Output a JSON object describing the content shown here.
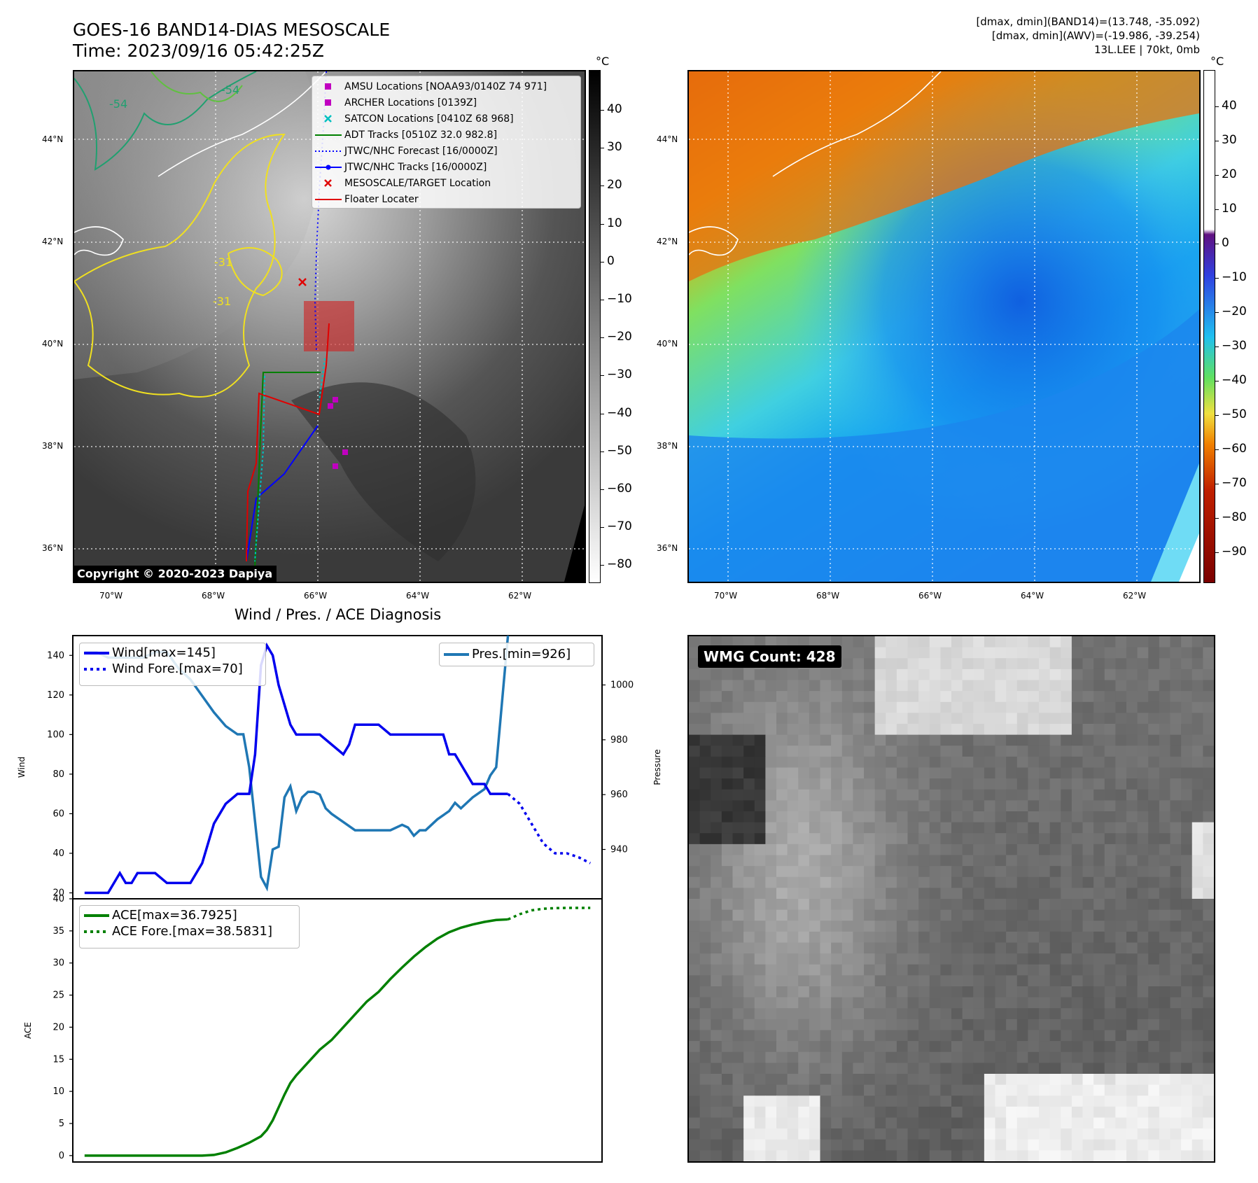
{
  "header": {
    "title_line1": "GOES-16 BAND14-DIAS MESOSCALE",
    "title_line2": "Time: 2023/09/16 05:42:25Z",
    "info_line1": "[dmax, dmin](BAND14)=(13.748, -35.092)",
    "info_line2": "[dmax, dmin](AWV)=(-19.986, -39.254)",
    "info_line3": "13L.LEE | 70kt, 0mb"
  },
  "maps": {
    "lat_labels": [
      "44°N",
      "42°N",
      "40°N",
      "38°N",
      "36°N"
    ],
    "lon_labels": [
      "70°W",
      "68°W",
      "66°W",
      "64°W",
      "62°W"
    ],
    "copyright": "Copyright © 2020-2023 Dapiya",
    "contour_labels": [
      "-54",
      "-54",
      "-31",
      "-31"
    ]
  },
  "colorbar_left": {
    "unit": "°C",
    "ticks": [
      "40",
      "30",
      "20",
      "10",
      "0",
      "−10",
      "−20",
      "−30",
      "−40",
      "−50",
      "−60",
      "−70",
      "−80"
    ]
  },
  "colorbar_right": {
    "unit": "°C",
    "ticks": [
      "40",
      "30",
      "20",
      "10",
      "0",
      "−10",
      "−20",
      "−30",
      "−40",
      "−50",
      "−60",
      "−70",
      "−80",
      "−90"
    ]
  },
  "map_legend": {
    "items": [
      {
        "label": "AMSU Locations [NOAA93/0140Z 74 971]",
        "color": "#c000c0",
        "symbol": "square"
      },
      {
        "label": "ARCHER Locations [0139Z]",
        "color": "#c000c0",
        "symbol": "square"
      },
      {
        "label": "SATCON Locations [0410Z 68 968]",
        "color": "#00c0c0",
        "symbol": "x"
      },
      {
        "label": "ADT Tracks [0510Z 32.0 982.8]",
        "color": "#008000",
        "symbol": "line"
      },
      {
        "label": "JTWC/NHC Forecast [16/0000Z]",
        "color": "#0000ff",
        "symbol": "dotted"
      },
      {
        "label": "JTWC/NHC Tracks [16/0000Z]",
        "color": "#0000ff",
        "symbol": "line-dot"
      },
      {
        "label": "MESOSCALE/TARGET Location",
        "color": "#e00000",
        "symbol": "x"
      },
      {
        "label": "Floater Locater",
        "color": "#e00000",
        "symbol": "line"
      }
    ]
  },
  "diagnosis": {
    "title": "Wind / Pres. / ACE Diagnosis",
    "wind_ylabel": "Wind",
    "pres_ylabel": "Pressure",
    "ace_ylabel": "ACE",
    "wind_legend": [
      "Wind[max=145]",
      "Wind Fore.[max=70]"
    ],
    "pres_legend": [
      "Pres.[min=926]"
    ],
    "ace_legend": [
      "ACE[max=36.7925]",
      "ACE Fore.[max=38.5831]"
    ]
  },
  "wmg": {
    "label": "WMG Count: 428"
  },
  "chart_data": [
    {
      "type": "line",
      "title": "Wind / Pres. / ACE Diagnosis",
      "ylabel": "Wind",
      "ylim": [
        17,
        150
      ],
      "yticks": [
        20,
        40,
        60,
        80,
        100,
        120,
        140
      ],
      "colors": {
        "wind": "#0000ee",
        "pres": "#1f77b4"
      },
      "series": [
        {
          "name": "Wind[max=145]",
          "x": [
            0,
            2,
            4,
            6,
            7,
            8,
            9,
            10,
            12,
            14,
            16,
            18,
            20,
            22,
            24,
            26,
            28,
            29,
            30,
            31,
            32,
            33,
            35,
            36,
            37,
            38,
            40,
            42,
            44,
            45,
            46,
            47,
            48,
            50,
            52,
            54,
            56,
            58,
            60,
            61,
            62,
            63,
            64,
            66,
            68,
            69,
            70,
            72
          ],
          "values": [
            20,
            20,
            20,
            30,
            25,
            25,
            30,
            30,
            30,
            25,
            25,
            25,
            35,
            55,
            65,
            70,
            70,
            90,
            135,
            145,
            140,
            125,
            105,
            100,
            100,
            100,
            100,
            95,
            90,
            95,
            105,
            105,
            105,
            105,
            100,
            100,
            100,
            100,
            100,
            100,
            90,
            90,
            85,
            75,
            75,
            70,
            70,
            70
          ]
        },
        {
          "name": "Wind Fore.[max=70]",
          "x": [
            72,
            74,
            76,
            78,
            80,
            82,
            84,
            86
          ],
          "values": [
            70,
            65,
            55,
            45,
            40,
            40,
            38,
            35
          ]
        },
        {
          "name": "Pres.[min=926]",
          "axis": "right",
          "ylim": [
            922,
            1018
          ],
          "yticks": [
            940,
            960,
            980,
            1000
          ],
          "x": [
            0,
            2,
            4,
            6,
            8,
            10,
            12,
            14,
            16,
            18,
            20,
            22,
            24,
            26,
            27,
            28,
            29,
            30,
            31,
            32,
            33,
            34,
            35,
            36,
            37,
            38,
            39,
            40,
            41,
            42,
            44,
            46,
            48,
            50,
            52,
            54,
            55,
            56,
            57,
            58,
            60,
            62,
            63,
            64,
            66,
            68,
            69,
            70,
            72
          ],
          "values": [
            1012,
            1012,
            1010,
            1010,
            1010,
            1010,
            1012,
            1012,
            1006,
            1002,
            996,
            990,
            985,
            982,
            982,
            970,
            950,
            930,
            926,
            940,
            941,
            959,
            963,
            954,
            959,
            961,
            961,
            960,
            955,
            953,
            950,
            947,
            947,
            947,
            947,
            949,
            948,
            945,
            947,
            947,
            951,
            954,
            957,
            955,
            959,
            962,
            967,
            970,
            1018
          ]
        }
      ]
    },
    {
      "type": "line",
      "ylabel": "ACE",
      "ylim": [
        -1,
        40
      ],
      "yticks": [
        0,
        5,
        10,
        15,
        20,
        25,
        30,
        35,
        40
      ],
      "colors": {
        "ace": "#008000"
      },
      "series": [
        {
          "name": "ACE[max=36.7925]",
          "x": [
            0,
            10,
            20,
            22,
            24,
            26,
            28,
            30,
            31,
            32,
            33,
            34,
            35,
            36,
            38,
            40,
            42,
            44,
            46,
            48,
            50,
            52,
            54,
            56,
            58,
            60,
            62,
            64,
            66,
            68,
            70,
            72
          ],
          "values": [
            0,
            0,
            0,
            0.1,
            0.5,
            1.2,
            2,
            3,
            4,
            5.5,
            7.5,
            9.5,
            11.3,
            12.5,
            14.5,
            16.5,
            18,
            20,
            22,
            24,
            25.5,
            27.5,
            29.3,
            31,
            32.5,
            33.8,
            34.8,
            35.5,
            36,
            36.4,
            36.7,
            36.79
          ]
        },
        {
          "name": "ACE Fore.[max=38.5831]",
          "x": [
            72,
            74,
            76,
            78,
            80,
            82,
            84,
            86
          ],
          "values": [
            36.79,
            37.6,
            38.2,
            38.45,
            38.55,
            38.58,
            38.58,
            38.58
          ]
        }
      ]
    }
  ]
}
